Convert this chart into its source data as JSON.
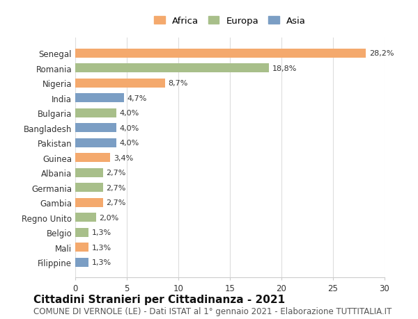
{
  "categories": [
    "Senegal",
    "Romania",
    "Nigeria",
    "India",
    "Bulgaria",
    "Bangladesh",
    "Pakistan",
    "Guinea",
    "Albania",
    "Germania",
    "Gambia",
    "Regno Unito",
    "Belgio",
    "Mali",
    "Filippine"
  ],
  "values": [
    28.2,
    18.8,
    8.7,
    4.7,
    4.0,
    4.0,
    4.0,
    3.4,
    2.7,
    2.7,
    2.7,
    2.0,
    1.3,
    1.3,
    1.3
  ],
  "labels": [
    "28,2%",
    "18,8%",
    "8,7%",
    "4,7%",
    "4,0%",
    "4,0%",
    "4,0%",
    "3,4%",
    "2,7%",
    "2,7%",
    "2,7%",
    "2,0%",
    "1,3%",
    "1,3%",
    "1,3%"
  ],
  "continents": [
    "Africa",
    "Europa",
    "Africa",
    "Asia",
    "Europa",
    "Asia",
    "Asia",
    "Africa",
    "Europa",
    "Europa",
    "Africa",
    "Europa",
    "Europa",
    "Africa",
    "Asia"
  ],
  "colors": {
    "Africa": "#F4A96D",
    "Europa": "#A8BF8A",
    "Asia": "#7B9EC4"
  },
  "legend_labels": [
    "Africa",
    "Europa",
    "Asia"
  ],
  "xlim": [
    0,
    30
  ],
  "xticks": [
    0,
    5,
    10,
    15,
    20,
    25,
    30
  ],
  "title": "Cittadini Stranieri per Cittadinanza - 2021",
  "subtitle": "COMUNE DI VERNOLE (LE) - Dati ISTAT al 1° gennaio 2021 - Elaborazione TUTTITALIA.IT",
  "title_fontsize": 11,
  "subtitle_fontsize": 8.5,
  "background_color": "#ffffff",
  "bar_height": 0.6
}
